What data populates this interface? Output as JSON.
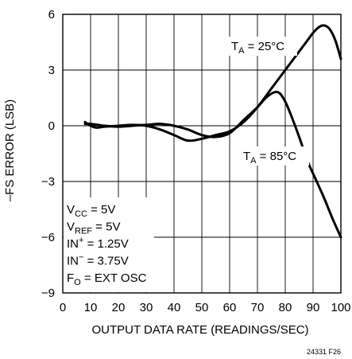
{
  "chart_data": {
    "type": "line",
    "title": "",
    "xlabel": "OUTPUT DATA RATE (READINGS/SEC)",
    "ylabel": "–FS ERROR (LSB)",
    "xlim": [
      0,
      100
    ],
    "ylim": [
      -9,
      6
    ],
    "xticks": [
      0,
      10,
      20,
      30,
      40,
      50,
      60,
      70,
      80,
      90,
      100
    ],
    "yticks": [
      6,
      3,
      0,
      -3,
      -6,
      -9
    ],
    "ytick_labels": [
      "6",
      "3",
      "0",
      "−3",
      "−6",
      "−9"
    ],
    "grid": true,
    "series": [
      {
        "name": "TA = 25°C",
        "x": [
          8,
          10,
          12,
          15,
          20,
          25,
          30,
          35,
          40,
          45,
          50,
          55,
          60,
          65,
          70,
          75,
          80,
          85,
          88,
          90,
          92,
          94,
          96,
          98,
          100
        ],
        "y": [
          0.2,
          0.0,
          -0.1,
          -0.05,
          0.0,
          0.05,
          0.0,
          -0.2,
          -0.5,
          -0.8,
          -0.7,
          -0.5,
          -0.3,
          0.2,
          1.0,
          2.0,
          3.0,
          4.0,
          4.6,
          5.0,
          5.3,
          5.4,
          5.2,
          4.6,
          3.6
        ]
      },
      {
        "name": "TA = 85°C",
        "x": [
          8,
          10,
          15,
          20,
          25,
          30,
          35,
          40,
          45,
          50,
          55,
          60,
          65,
          70,
          73,
          76,
          78,
          80,
          82,
          85,
          88,
          91,
          94,
          97,
          100
        ],
        "y": [
          0.1,
          0.1,
          0.0,
          -0.05,
          0.0,
          0.05,
          0.1,
          0.0,
          -0.2,
          -0.5,
          -0.6,
          -0.4,
          0.3,
          1.0,
          1.5,
          1.8,
          1.75,
          1.3,
          0.6,
          -0.6,
          -1.9,
          -2.9,
          -3.9,
          -5.0,
          -6.0
        ]
      }
    ],
    "annotations": {
      "label_25": {
        "prefix": "T",
        "sub": "A",
        "rest": " = 25°C"
      },
      "label_85": {
        "prefix": "T",
        "sub": "A",
        "rest": " = 85°C"
      },
      "conditions": [
        {
          "prefix": "V",
          "sub": "CC",
          "sup": "",
          "rest": " = 5V"
        },
        {
          "prefix": "V",
          "sub": "REF",
          "sup": "",
          "rest": " = 5V"
        },
        {
          "prefix": "IN",
          "sub": "",
          "sup": "+",
          "rest": " = 1.25V"
        },
        {
          "prefix": "IN",
          "sub": "",
          "sup": "−",
          "rest": " = 3.75V"
        },
        {
          "prefix": "F",
          "sub": "O",
          "sup": "",
          "rest": " = EXT OSC"
        }
      ]
    },
    "figure_id": "24331 F26",
    "colors": {
      "line": "#000000",
      "grid": "#000000",
      "background": "#ffffff"
    }
  }
}
